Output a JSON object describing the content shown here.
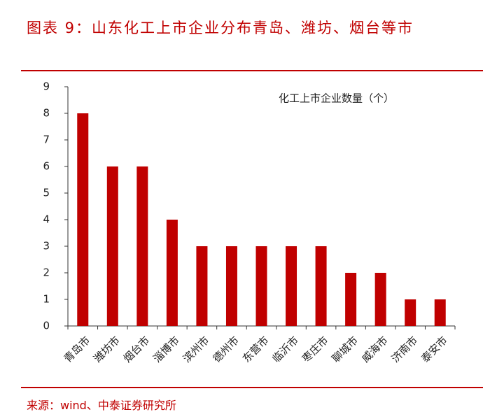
{
  "chart_data": {
    "type": "bar",
    "title": "图表 9：山东化工上市企业分布青岛、潍坊、烟台等市",
    "categories": [
      "青岛市",
      "潍坊市",
      "烟台市",
      "淄博市",
      "滨州市",
      "德州市",
      "东营市",
      "临沂市",
      "枣庄市",
      "聊城市",
      "威海市",
      "济南市",
      "泰安市"
    ],
    "series": [
      {
        "name": "化工上市企业数量（个）",
        "color": "#c00000",
        "values": [
          8,
          6,
          6,
          4,
          3,
          3,
          3,
          3,
          3,
          2,
          2,
          1,
          1
        ]
      }
    ],
    "ylim": [
      0,
      9
    ],
    "yticks": [
      0,
      1,
      2,
      3,
      4,
      5,
      6,
      7,
      8,
      9
    ],
    "grid": false,
    "source": "来源：wind、中泰证券研究所"
  }
}
